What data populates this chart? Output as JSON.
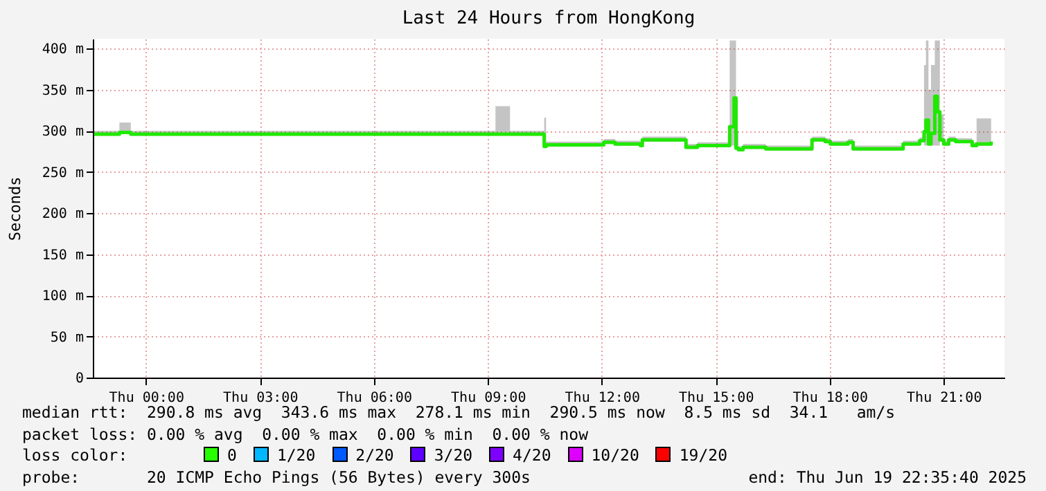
{
  "chart_data": {
    "type": "step",
    "title": "Last 24 Hours from HongKong",
    "ylabel": "Seconds",
    "x": [
      "2025-06-18T22:38",
      "2025-06-18T23:18",
      "2025-06-18T23:36",
      "2025-06-19T09:12",
      "2025-06-19T09:35",
      "2025-06-19T10:24",
      "2025-06-19T10:29",
      "2025-06-19T10:32",
      "2025-06-19T12:03",
      "2025-06-19T12:21",
      "2025-06-19T13:01",
      "2025-06-19T13:04",
      "2025-06-19T14:13",
      "2025-06-19T14:31",
      "2025-06-19T15:22",
      "2025-06-19T15:29",
      "2025-06-19T15:32",
      "2025-06-19T15:36",
      "2025-06-19T15:43",
      "2025-06-19T16:19",
      "2025-06-19T17:32",
      "2025-06-19T17:53",
      "2025-06-19T18:01",
      "2025-06-19T18:29",
      "2025-06-19T18:37",
      "2025-06-19T19:56",
      "2025-06-19T20:22",
      "2025-06-19T20:29",
      "2025-06-19T20:32",
      "2025-06-19T20:36",
      "2025-06-19T20:40",
      "2025-06-19T20:46",
      "2025-06-19T20:50",
      "2025-06-19T20:54",
      "2025-06-19T21:00",
      "2025-06-19T21:08",
      "2025-06-19T21:19",
      "2025-06-19T21:30",
      "2025-06-19T21:45",
      "2025-06-19T21:52",
      "2025-06-19T22:15"
    ],
    "series": [
      {
        "color": "#20e800",
        "values": [
          296,
          298,
          296,
          296,
          296,
          296,
          281,
          283,
          286,
          284,
          282,
          289,
          280,
          282,
          305,
          340,
          279,
          277,
          280,
          278,
          289,
          287,
          284,
          286,
          278,
          284,
          288,
          299,
          313,
          284,
          297,
          342,
          323,
          289,
          284,
          289,
          287,
          287,
          282,
          284,
          287
        ],
        "lower": [
          294,
          296,
          294,
          294,
          294,
          294,
          279,
          281,
          284,
          282,
          280,
          287,
          278,
          280,
          282,
          282,
          277,
          275,
          278,
          276,
          287,
          285,
          282,
          284,
          276,
          282,
          286,
          282,
          282,
          282,
          282,
          282,
          282,
          287,
          282,
          287,
          285,
          285,
          280,
          282,
          285
        ],
        "upper": [
          300,
          310,
          300,
          330,
          300,
          300,
          316,
          287,
          290,
          288,
          286,
          293,
          284,
          286,
          410,
          410,
          300,
          281,
          284,
          282,
          293,
          291,
          288,
          290,
          282,
          288,
          292,
          380,
          410,
          350,
          380,
          410,
          410,
          320,
          288,
          293,
          291,
          291,
          286,
          315,
          291
        ]
      }
    ],
    "xlim": [
      "2025-06-18T22:36",
      "2025-06-19T22:36"
    ],
    "xticks": [
      {
        "value": "2025-06-19T00:00",
        "label": "Thu 00:00"
      },
      {
        "value": "2025-06-19T03:00",
        "label": "Thu 03:00"
      },
      {
        "value": "2025-06-19T06:00",
        "label": "Thu 06:00"
      },
      {
        "value": "2025-06-19T09:00",
        "label": "Thu 09:00"
      },
      {
        "value": "2025-06-19T12:00",
        "label": "Thu 12:00"
      },
      {
        "value": "2025-06-19T15:00",
        "label": "Thu 15:00"
      },
      {
        "value": "2025-06-19T18:00",
        "label": "Thu 18:00"
      },
      {
        "value": "2025-06-19T21:00",
        "label": "Thu 21:00"
      }
    ],
    "ylim": [
      0,
      412
    ],
    "yticks": [
      0,
      {
        "value": 50,
        "label": "50 m"
      },
      {
        "value": 100,
        "label": "100 m"
      },
      {
        "value": 150,
        "label": "150 m"
      },
      {
        "value": 200,
        "label": "200 m"
      },
      {
        "value": 250,
        "label": "250 m"
      },
      {
        "value": 300,
        "label": "300 m"
      },
      {
        "value": 350,
        "label": "350 m"
      },
      {
        "value": 400,
        "label": "400 m"
      }
    ],
    "grid": true,
    "marker": "none",
    "line_style": "solid",
    "annotations": [
      "median rtt:  290.8 ms avg  343.6 ms max  278.1 ms min  290.5 ms now  8.5 ms sd  34.1   am/s",
      "packet loss: 0.00 % avg  0.00 % max  0.00 % min  0.00 % now",
      "loss color:",
      "0",
      "1/20",
      "2/20",
      "3/20",
      "4/20",
      "10/20",
      "19/20",
      "probe:       20 ICMP Echo Pings (56 Bytes) every 300s",
      "end: Thu Jun 19 22:35:40 2025"
    ]
  }
}
